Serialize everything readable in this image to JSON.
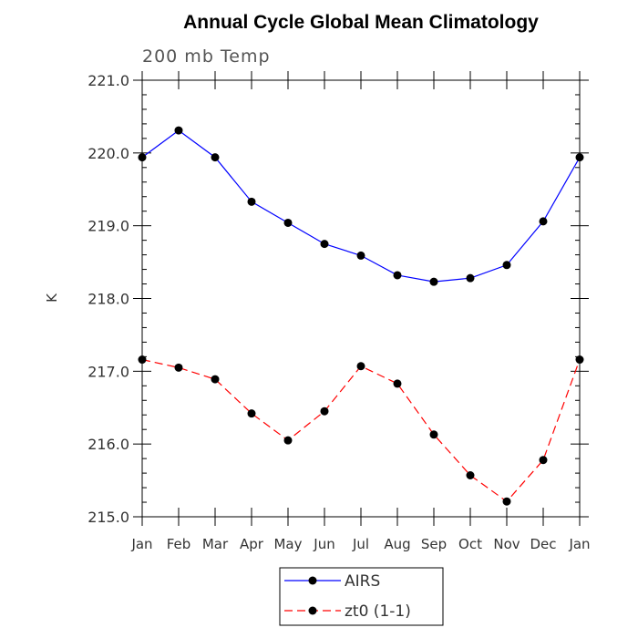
{
  "chart_data": {
    "type": "line",
    "title": "Annual Cycle Global Mean Climatology",
    "subtitle": "200 mb Temp",
    "xlabel": "",
    "ylabel": "K",
    "categories": [
      "Jan",
      "Feb",
      "Mar",
      "Apr",
      "May",
      "Jun",
      "Jul",
      "Aug",
      "Sep",
      "Oct",
      "Nov",
      "Dec",
      "Jan"
    ],
    "ylim": [
      215.0,
      221.0
    ],
    "yticks": [
      "215.0",
      "216.0",
      "217.0",
      "218.0",
      "219.0",
      "220.0",
      "221.0"
    ],
    "grid": false,
    "legend_position": "bottom-center",
    "series": [
      {
        "name": "AIRS",
        "color": "#0000ff",
        "dash": "solid",
        "marker": "filled-circle",
        "values": [
          219.94,
          220.31,
          219.94,
          219.33,
          219.04,
          218.75,
          218.59,
          218.32,
          218.23,
          218.28,
          218.46,
          219.06,
          219.94
        ]
      },
      {
        "name": "zt0 (1-1)",
        "color": "#ff0000",
        "dash": "dashed",
        "marker": "filled-circle",
        "values": [
          217.16,
          217.05,
          216.89,
          216.42,
          216.05,
          216.45,
          217.07,
          216.83,
          216.13,
          215.57,
          215.21,
          215.78,
          217.16
        ]
      }
    ]
  }
}
